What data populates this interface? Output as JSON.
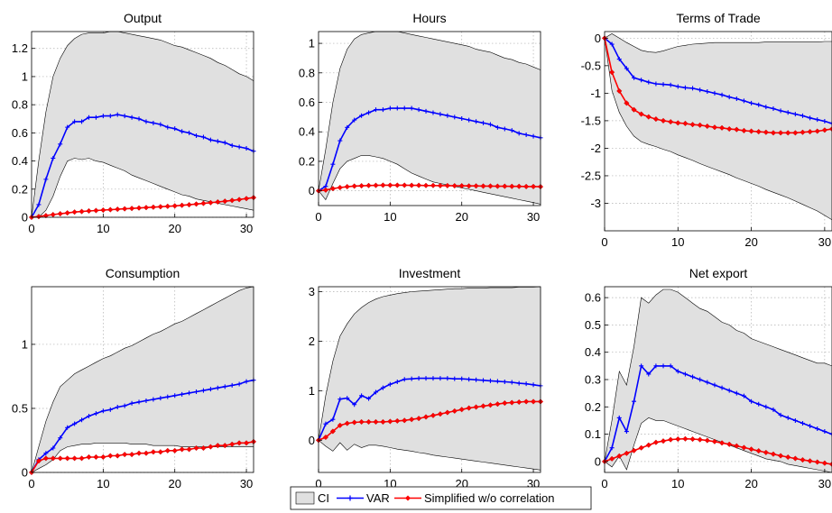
{
  "legend": {
    "ci_label": "CI",
    "var_label": "VAR",
    "model_label": "Simplified w/o correlation"
  },
  "colors": {
    "ci_fill": "#e0e0e0",
    "ci_edge": "#000000",
    "var": "#0000ff",
    "model": "#ff0000",
    "grid": "#b0b0b0"
  },
  "chart_data": [
    {
      "type": "line",
      "title": "Output",
      "xlim": [
        0,
        31
      ],
      "ylim": [
        0,
        1.32
      ],
      "xticks": [
        0,
        10,
        20,
        30
      ],
      "yticks": [
        0,
        0.2,
        0.4,
        0.6,
        0.8,
        1,
        1.2
      ],
      "ytick_labels": [
        "0",
        "0.2",
        "0.4",
        "0.6",
        "0.8",
        "1",
        "1.2"
      ],
      "x": [
        0,
        1,
        2,
        3,
        4,
        5,
        6,
        7,
        8,
        9,
        10,
        11,
        12,
        13,
        14,
        15,
        16,
        17,
        18,
        19,
        20,
        21,
        22,
        23,
        24,
        25,
        26,
        27,
        28,
        29,
        30,
        31
      ],
      "var": [
        0,
        0.09,
        0.27,
        0.42,
        0.52,
        0.64,
        0.68,
        0.68,
        0.71,
        0.71,
        0.72,
        0.72,
        0.73,
        0.72,
        0.71,
        0.7,
        0.68,
        0.67,
        0.66,
        0.64,
        0.63,
        0.61,
        0.6,
        0.58,
        0.57,
        0.55,
        0.54,
        0.53,
        0.51,
        0.5,
        0.49,
        0.47
      ],
      "model": [
        0,
        0.005,
        0.012,
        0.019,
        0.025,
        0.031,
        0.037,
        0.041,
        0.045,
        0.048,
        0.051,
        0.054,
        0.057,
        0.06,
        0.063,
        0.066,
        0.069,
        0.072,
        0.075,
        0.078,
        0.081,
        0.085,
        0.089,
        0.094,
        0.099,
        0.104,
        0.109,
        0.114,
        0.12,
        0.126,
        0.133,
        0.14
      ],
      "ci_upper": [
        0,
        0.4,
        0.75,
        1.0,
        1.13,
        1.22,
        1.27,
        1.3,
        1.31,
        1.31,
        1.31,
        1.32,
        1.32,
        1.31,
        1.3,
        1.29,
        1.28,
        1.27,
        1.26,
        1.24,
        1.22,
        1.21,
        1.19,
        1.17,
        1.15,
        1.13,
        1.1,
        1.08,
        1.05,
        1.02,
        1.0,
        0.97
      ],
      "ci_lower": [
        0,
        0.0,
        0.05,
        0.15,
        0.29,
        0.4,
        0.42,
        0.41,
        0.42,
        0.4,
        0.39,
        0.37,
        0.35,
        0.33,
        0.3,
        0.28,
        0.26,
        0.24,
        0.22,
        0.2,
        0.18,
        0.16,
        0.15,
        0.13,
        0.12,
        0.11,
        0.1,
        0.09,
        0.08,
        0.07,
        0.06,
        0.05
      ]
    },
    {
      "type": "line",
      "title": "Hours",
      "xlim": [
        0,
        31
      ],
      "ylim": [
        -0.1,
        1.08
      ],
      "xticks": [
        0,
        10,
        20,
        30
      ],
      "yticks": [
        0,
        0.2,
        0.4,
        0.6,
        0.8,
        1
      ],
      "ytick_labels": [
        "0",
        "0.2",
        "0.4",
        "0.6",
        "0.8",
        "1"
      ],
      "x": [
        0,
        1,
        2,
        3,
        4,
        5,
        6,
        7,
        8,
        9,
        10,
        11,
        12,
        13,
        14,
        15,
        16,
        17,
        18,
        19,
        20,
        21,
        22,
        23,
        24,
        25,
        26,
        27,
        28,
        29,
        30,
        31
      ],
      "var": [
        0,
        0.03,
        0.18,
        0.34,
        0.43,
        0.48,
        0.51,
        0.53,
        0.55,
        0.55,
        0.56,
        0.56,
        0.56,
        0.56,
        0.55,
        0.54,
        0.53,
        0.52,
        0.51,
        0.5,
        0.49,
        0.48,
        0.47,
        0.46,
        0.45,
        0.43,
        0.42,
        0.41,
        0.39,
        0.38,
        0.37,
        0.36
      ],
      "model": [
        0,
        0.005,
        0.015,
        0.022,
        0.028,
        0.032,
        0.034,
        0.036,
        0.037,
        0.038,
        0.038,
        0.038,
        0.038,
        0.037,
        0.037,
        0.036,
        0.036,
        0.035,
        0.035,
        0.034,
        0.034,
        0.033,
        0.033,
        0.032,
        0.032,
        0.031,
        0.031,
        0.03,
        0.03,
        0.029,
        0.029,
        0.028
      ],
      "ci_upper": [
        0,
        0.28,
        0.6,
        0.83,
        0.96,
        1.03,
        1.06,
        1.07,
        1.08,
        1.08,
        1.08,
        1.08,
        1.07,
        1.06,
        1.05,
        1.04,
        1.03,
        1.02,
        1.01,
        1.0,
        0.99,
        0.98,
        0.96,
        0.95,
        0.94,
        0.92,
        0.9,
        0.89,
        0.87,
        0.86,
        0.84,
        0.82
      ],
      "ci_lower": [
        0,
        -0.06,
        0.05,
        0.15,
        0.2,
        0.22,
        0.24,
        0.24,
        0.23,
        0.22,
        0.2,
        0.18,
        0.15,
        0.12,
        0.1,
        0.08,
        0.06,
        0.05,
        0.04,
        0.03,
        0.02,
        0.01,
        0.0,
        -0.01,
        -0.02,
        -0.03,
        -0.04,
        -0.05,
        -0.06,
        -0.07,
        -0.08,
        -0.09
      ]
    },
    {
      "type": "line",
      "title": "Terms of Trade",
      "xlim": [
        0,
        31
      ],
      "ylim": [
        -3.5,
        0.12
      ],
      "xticks": [
        0,
        10,
        20,
        30
      ],
      "yticks": [
        0,
        -0.5,
        -1,
        -1.5,
        -2,
        -2.5,
        -3
      ],
      "ytick_labels": [
        "0",
        "-0.5",
        "-1",
        "-1.5",
        "-2",
        "-2.5",
        "-3"
      ],
      "x": [
        0,
        1,
        2,
        3,
        4,
        5,
        6,
        7,
        8,
        9,
        10,
        11,
        12,
        13,
        14,
        15,
        16,
        17,
        18,
        19,
        20,
        21,
        22,
        23,
        24,
        25,
        26,
        27,
        28,
        29,
        30,
        31
      ],
      "var": [
        0,
        -0.11,
        -0.38,
        -0.55,
        -0.72,
        -0.76,
        -0.8,
        -0.83,
        -0.84,
        -0.85,
        -0.88,
        -0.9,
        -0.91,
        -0.94,
        -0.97,
        -1.0,
        -1.03,
        -1.07,
        -1.1,
        -1.14,
        -1.18,
        -1.21,
        -1.25,
        -1.28,
        -1.32,
        -1.35,
        -1.38,
        -1.41,
        -1.45,
        -1.48,
        -1.51,
        -1.55
      ],
      "model": [
        0,
        -0.62,
        -0.96,
        -1.18,
        -1.3,
        -1.38,
        -1.43,
        -1.47,
        -1.5,
        -1.52,
        -1.54,
        -1.55,
        -1.57,
        -1.58,
        -1.6,
        -1.62,
        -1.63,
        -1.65,
        -1.66,
        -1.68,
        -1.69,
        -1.7,
        -1.71,
        -1.72,
        -1.72,
        -1.72,
        -1.72,
        -1.71,
        -1.7,
        -1.69,
        -1.67,
        -1.65
      ],
      "ci_upper": [
        0,
        0.08,
        0.0,
        -0.08,
        -0.15,
        -0.22,
        -0.25,
        -0.26,
        -0.23,
        -0.19,
        -0.15,
        -0.13,
        -0.11,
        -0.1,
        -0.09,
        -0.08,
        -0.08,
        -0.08,
        -0.08,
        -0.08,
        -0.08,
        -0.08,
        -0.07,
        -0.07,
        -0.07,
        -0.07,
        -0.07,
        -0.07,
        -0.07,
        -0.07,
        -0.06,
        -0.06
      ],
      "ci_lower": [
        0,
        -0.95,
        -1.35,
        -1.6,
        -1.78,
        -1.88,
        -1.93,
        -1.97,
        -2.02,
        -2.06,
        -2.12,
        -2.17,
        -2.22,
        -2.28,
        -2.33,
        -2.38,
        -2.43,
        -2.48,
        -2.54,
        -2.59,
        -2.64,
        -2.69,
        -2.75,
        -2.8,
        -2.85,
        -2.9,
        -2.96,
        -3.02,
        -3.08,
        -3.14,
        -3.22,
        -3.3
      ]
    },
    {
      "type": "line",
      "title": "Consumption",
      "xlim": [
        0,
        31
      ],
      "ylim": [
        0,
        1.45
      ],
      "xticks": [
        0,
        10,
        20,
        30
      ],
      "yticks": [
        0,
        0.5,
        1
      ],
      "ytick_labels": [
        "0",
        "0.5",
        "1"
      ],
      "x": [
        0,
        1,
        2,
        3,
        4,
        5,
        6,
        7,
        8,
        9,
        10,
        11,
        12,
        13,
        14,
        15,
        16,
        17,
        18,
        19,
        20,
        21,
        22,
        23,
        24,
        25,
        26,
        27,
        28,
        29,
        30,
        31
      ],
      "var": [
        0,
        0.1,
        0.15,
        0.19,
        0.27,
        0.35,
        0.38,
        0.41,
        0.44,
        0.46,
        0.48,
        0.49,
        0.51,
        0.52,
        0.54,
        0.55,
        0.56,
        0.57,
        0.58,
        0.59,
        0.6,
        0.61,
        0.62,
        0.63,
        0.64,
        0.65,
        0.66,
        0.67,
        0.68,
        0.69,
        0.71,
        0.72
      ],
      "model": [
        0,
        0.09,
        0.11,
        0.11,
        0.11,
        0.11,
        0.11,
        0.11,
        0.12,
        0.12,
        0.12,
        0.13,
        0.13,
        0.14,
        0.14,
        0.15,
        0.15,
        0.16,
        0.16,
        0.17,
        0.17,
        0.18,
        0.18,
        0.19,
        0.19,
        0.2,
        0.21,
        0.21,
        0.22,
        0.23,
        0.23,
        0.24
      ],
      "ci_upper": [
        0,
        0.2,
        0.4,
        0.55,
        0.67,
        0.72,
        0.77,
        0.8,
        0.83,
        0.86,
        0.89,
        0.91,
        0.94,
        0.97,
        0.99,
        1.02,
        1.05,
        1.08,
        1.1,
        1.13,
        1.16,
        1.18,
        1.21,
        1.24,
        1.27,
        1.3,
        1.33,
        1.36,
        1.39,
        1.42,
        1.44,
        1.45
      ],
      "ci_lower": [
        0,
        0.03,
        0.06,
        0.1,
        0.17,
        0.2,
        0.21,
        0.22,
        0.22,
        0.23,
        0.23,
        0.23,
        0.23,
        0.23,
        0.22,
        0.22,
        0.22,
        0.21,
        0.21,
        0.21,
        0.21,
        0.2,
        0.2,
        0.2,
        0.2,
        0.2,
        0.2,
        0.2,
        0.2,
        0.2,
        0.2,
        0.2
      ]
    },
    {
      "type": "line",
      "title": "Investment",
      "xlim": [
        0,
        31
      ],
      "ylim": [
        -0.65,
        3.1
      ],
      "xticks": [
        0,
        10,
        20,
        30
      ],
      "yticks": [
        0,
        1,
        2,
        3
      ],
      "ytick_labels": [
        "0",
        "1",
        "2",
        "3"
      ],
      "x": [
        0,
        1,
        2,
        3,
        4,
        5,
        6,
        7,
        8,
        9,
        10,
        11,
        12,
        13,
        14,
        15,
        16,
        17,
        18,
        19,
        20,
        21,
        22,
        23,
        24,
        25,
        26,
        27,
        28,
        29,
        30,
        31
      ],
      "var": [
        0,
        0.33,
        0.42,
        0.83,
        0.85,
        0.72,
        0.9,
        0.84,
        0.97,
        1.06,
        1.13,
        1.18,
        1.23,
        1.24,
        1.25,
        1.25,
        1.25,
        1.25,
        1.25,
        1.24,
        1.24,
        1.23,
        1.22,
        1.21,
        1.2,
        1.19,
        1.18,
        1.17,
        1.15,
        1.14,
        1.12,
        1.1
      ],
      "model": [
        0,
        0.06,
        0.18,
        0.3,
        0.34,
        0.36,
        0.37,
        0.37,
        0.37,
        0.37,
        0.38,
        0.39,
        0.4,
        0.42,
        0.44,
        0.47,
        0.5,
        0.53,
        0.56,
        0.59,
        0.62,
        0.65,
        0.67,
        0.69,
        0.71,
        0.73,
        0.75,
        0.76,
        0.77,
        0.78,
        0.78,
        0.78
      ],
      "ci_upper": [
        0,
        0.9,
        1.6,
        2.1,
        2.35,
        2.55,
        2.68,
        2.78,
        2.85,
        2.9,
        2.93,
        2.96,
        2.98,
        3.0,
        3.01,
        3.02,
        3.03,
        3.04,
        3.05,
        3.06,
        3.06,
        3.07,
        3.07,
        3.07,
        3.08,
        3.08,
        3.08,
        3.08,
        3.09,
        3.09,
        3.09,
        3.1
      ],
      "ci_lower": [
        0,
        -0.12,
        -0.22,
        -0.05,
        -0.2,
        -0.08,
        -0.15,
        -0.1,
        -0.1,
        -0.12,
        -0.15,
        -0.18,
        -0.2,
        -0.22,
        -0.25,
        -0.27,
        -0.3,
        -0.32,
        -0.34,
        -0.36,
        -0.38,
        -0.4,
        -0.42,
        -0.44,
        -0.46,
        -0.48,
        -0.5,
        -0.52,
        -0.54,
        -0.56,
        -0.58,
        -0.6
      ]
    },
    {
      "type": "line",
      "title": "Net export",
      "xlim": [
        0,
        31
      ],
      "ylim": [
        -0.04,
        0.64
      ],
      "xticks": [
        0,
        10,
        20,
        30
      ],
      "yticks": [
        0,
        0.1,
        0.2,
        0.3,
        0.4,
        0.5,
        0.6
      ],
      "ytick_labels": [
        "0",
        "0.1",
        "0.2",
        "0.3",
        "0.4",
        "0.5",
        "0.6"
      ],
      "x": [
        0,
        1,
        2,
        3,
        4,
        5,
        6,
        7,
        8,
        9,
        10,
        11,
        12,
        13,
        14,
        15,
        16,
        17,
        18,
        19,
        20,
        21,
        22,
        23,
        24,
        25,
        26,
        27,
        28,
        29,
        30,
        31
      ],
      "var": [
        0,
        0.05,
        0.16,
        0.11,
        0.22,
        0.35,
        0.32,
        0.35,
        0.35,
        0.35,
        0.33,
        0.32,
        0.31,
        0.3,
        0.29,
        0.28,
        0.27,
        0.26,
        0.25,
        0.24,
        0.22,
        0.21,
        0.2,
        0.19,
        0.17,
        0.16,
        0.15,
        0.14,
        0.13,
        0.12,
        0.11,
        0.1
      ],
      "model": [
        0,
        0.01,
        0.02,
        0.03,
        0.04,
        0.05,
        0.06,
        0.07,
        0.075,
        0.08,
        0.082,
        0.083,
        0.082,
        0.08,
        0.077,
        0.073,
        0.068,
        0.063,
        0.057,
        0.051,
        0.045,
        0.039,
        0.033,
        0.027,
        0.021,
        0.016,
        0.011,
        0.006,
        0.002,
        -0.002,
        -0.006,
        -0.01
      ],
      "ci_upper": [
        0,
        0.15,
        0.33,
        0.28,
        0.42,
        0.6,
        0.58,
        0.61,
        0.63,
        0.63,
        0.62,
        0.6,
        0.58,
        0.56,
        0.55,
        0.53,
        0.51,
        0.5,
        0.48,
        0.47,
        0.45,
        0.44,
        0.43,
        0.42,
        0.41,
        0.4,
        0.39,
        0.38,
        0.37,
        0.36,
        0.36,
        0.35
      ],
      "ci_lower": [
        0,
        -0.02,
        0.02,
        -0.03,
        0.06,
        0.14,
        0.16,
        0.15,
        0.15,
        0.14,
        0.13,
        0.12,
        0.11,
        0.1,
        0.09,
        0.08,
        0.07,
        0.06,
        0.05,
        0.04,
        0.03,
        0.02,
        0.01,
        0.005,
        0.0,
        -0.01,
        -0.015,
        -0.02,
        -0.025,
        -0.03,
        -0.035,
        -0.04
      ]
    }
  ]
}
